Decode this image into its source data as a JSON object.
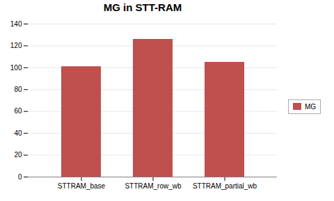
{
  "chart_data": {
    "type": "bar",
    "title": "MG in STT-RAM",
    "categories": [
      "STTRAM_base",
      "STTRAM_row_wb",
      "STTRAM_partial_wb"
    ],
    "series": [
      {
        "name": "MG",
        "color": "#C0504D",
        "values": [
          101,
          126,
          105
        ]
      }
    ],
    "ylim": [
      0,
      140
    ],
    "yticks": [
      0,
      20,
      40,
      60,
      80,
      100,
      120,
      140
    ],
    "grid": true,
    "legend": "right"
  }
}
